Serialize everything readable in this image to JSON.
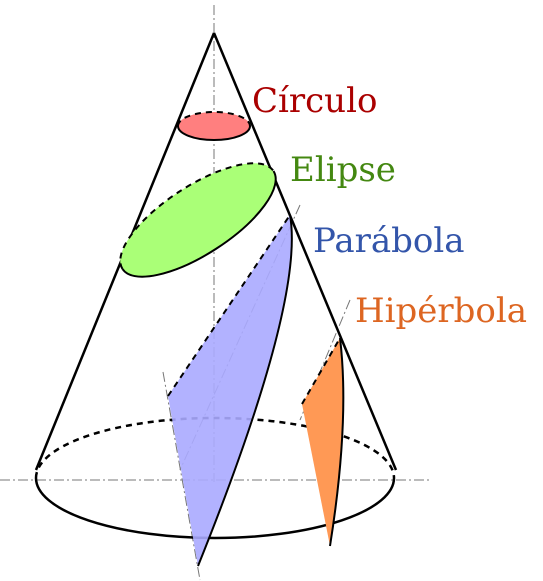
{
  "labels": {
    "circle": "Círculo",
    "ellipse": "Elipse",
    "parabola": "Parábola",
    "hyperbola": "Hipérbola"
  }
}
